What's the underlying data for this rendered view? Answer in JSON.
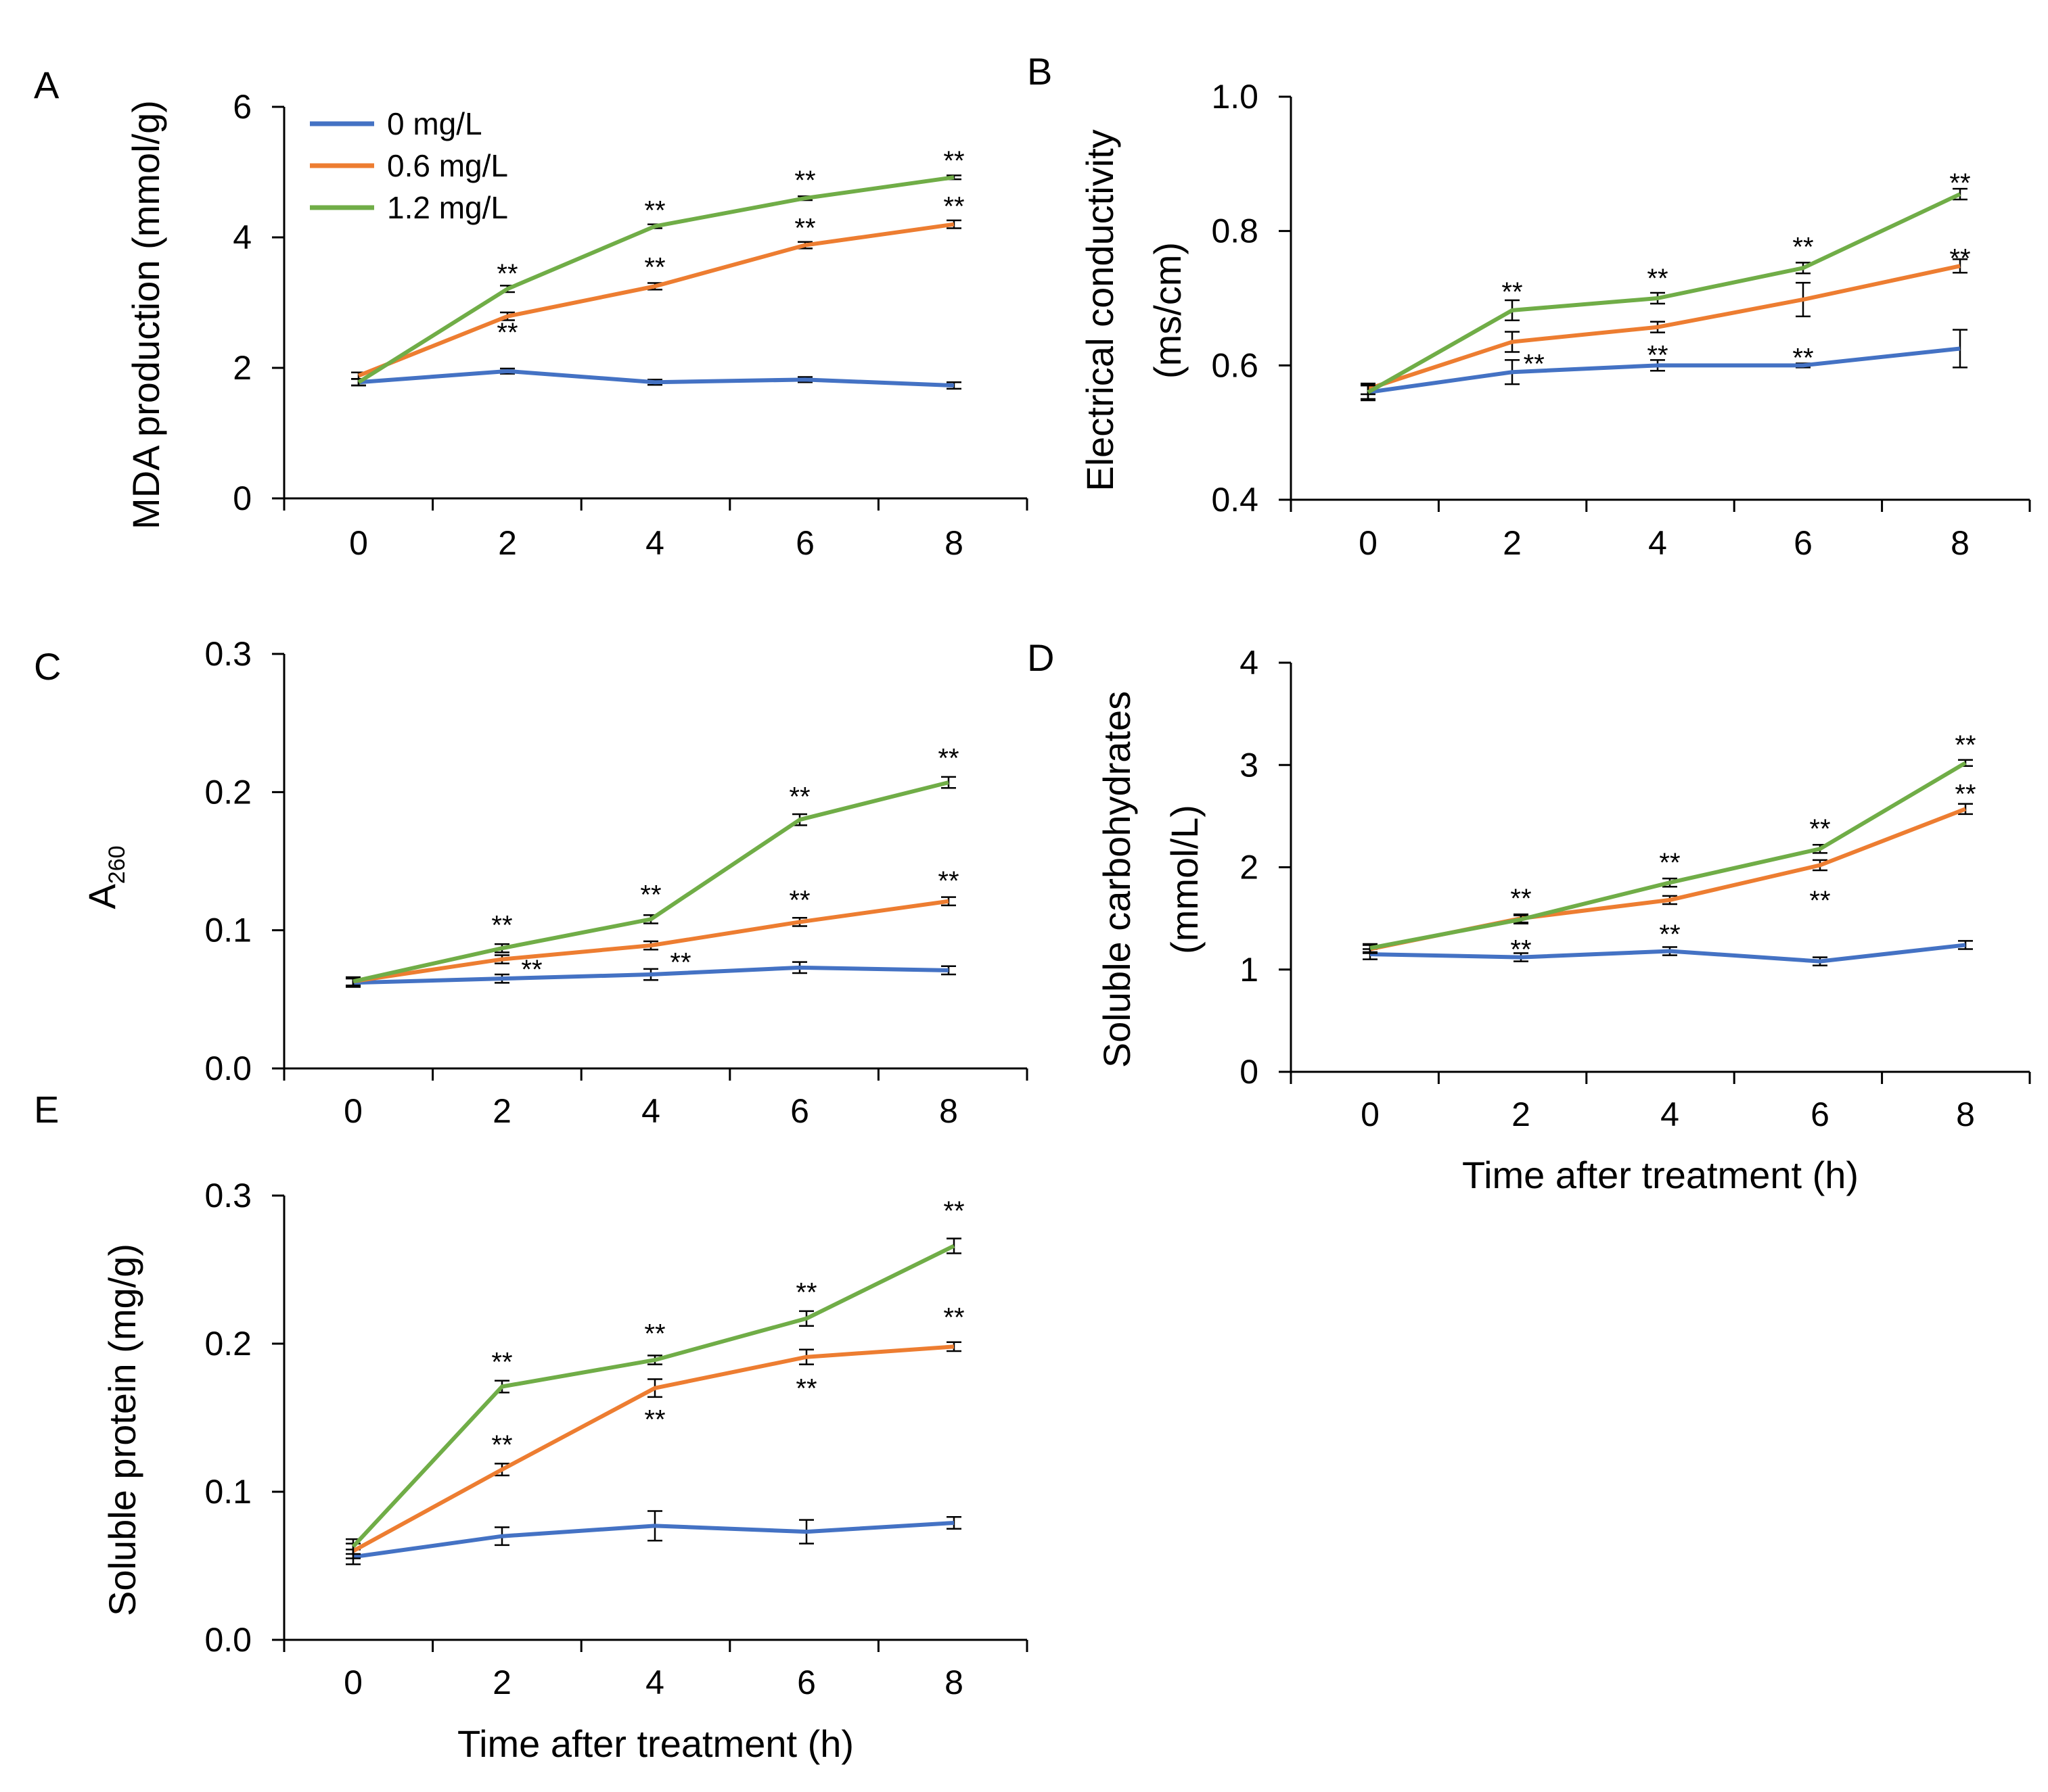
{
  "legend": [
    {
      "name": "0 mg/L",
      "color": "#4472c4"
    },
    {
      "name": "0.6 mg/L",
      "color": "#ed7d31"
    },
    {
      "name": "1.2 mg/L",
      "color": "#70ad47"
    }
  ],
  "chart_data": [
    {
      "id": "A",
      "type": "line",
      "letter": "A",
      "title": "",
      "xlabel": "",
      "ylabel": "MDA production (mmol/g)",
      "ylabel2": "",
      "x": [
        0,
        2,
        4,
        6,
        8
      ],
      "xticks": [
        "0",
        "2",
        "4",
        "6",
        "8"
      ],
      "yticks": [
        "0",
        "2",
        "4",
        "6"
      ],
      "ylim": [
        0,
        6
      ],
      "legend": "top-left",
      "series": [
        {
          "name": "0 mg/L",
          "values": [
            1.78,
            1.95,
            1.78,
            1.82,
            1.73
          ],
          "err": [
            0.05,
            0.04,
            0.04,
            0.04,
            0.05
          ]
        },
        {
          "name": "0.6 mg/L",
          "values": [
            1.88,
            2.79,
            3.25,
            3.88,
            4.2
          ],
          "err": [
            0.05,
            0.06,
            0.05,
            0.05,
            0.06
          ]
        },
        {
          "name": "1.2 mg/L",
          "values": [
            1.78,
            3.21,
            4.17,
            4.6,
            4.92
          ],
          "err": [
            0.05,
            0.05,
            0.03,
            0.03,
            0.03
          ]
        }
      ],
      "sig": [
        {
          "text": "**",
          "x": 2,
          "y": 2.55
        },
        {
          "text": "**",
          "x": 2,
          "y": 3.45
        },
        {
          "text": "**",
          "x": 4,
          "y": 3.55
        },
        {
          "text": "**",
          "x": 4,
          "y": 4.42
        },
        {
          "text": "**",
          "x": 6,
          "y": 4.15
        },
        {
          "text": "**",
          "x": 6,
          "y": 4.88
        },
        {
          "text": "**",
          "x": 8,
          "y": 4.48
        },
        {
          "text": "**",
          "x": 8,
          "y": 5.18
        }
      ]
    },
    {
      "id": "B",
      "type": "line",
      "letter": "B",
      "title": "",
      "xlabel": "",
      "ylabel": "Electrical conductivity",
      "ylabel2": "(ms/cm)",
      "x": [
        0,
        2,
        4,
        6,
        8
      ],
      "xticks": [
        "0",
        "2",
        "4",
        "6",
        "8"
      ],
      "yticks": [
        "0.4",
        "0.6",
        "0.8",
        "1.0"
      ],
      "ylim": [
        0.4,
        1.0
      ],
      "series": [
        {
          "name": "0 mg/L",
          "values": [
            0.56,
            0.59,
            0.6,
            0.6,
            0.625
          ],
          "err": [
            0.012,
            0.018,
            0.008,
            0.003,
            0.028
          ]
        },
        {
          "name": "0.6 mg/L",
          "values": [
            0.565,
            0.635,
            0.657,
            0.698,
            0.748
          ],
          "err": [
            0.008,
            0.015,
            0.008,
            0.025,
            0.01
          ]
        },
        {
          "name": "1.2 mg/L",
          "values": [
            0.56,
            0.682,
            0.7,
            0.745,
            0.855
          ],
          "err": [
            0.01,
            0.015,
            0.008,
            0.008,
            0.008
          ]
        }
      ],
      "sig": [
        {
          "text": "**",
          "x": 2,
          "y": 0.71
        },
        {
          "text": "**",
          "x": 2.3,
          "y": 0.603
        },
        {
          "text": "**",
          "x": 4,
          "y": 0.73
        },
        {
          "text": "**",
          "x": 4,
          "y": 0.616
        },
        {
          "text": "**",
          "x": 6,
          "y": 0.777
        },
        {
          "text": "**",
          "x": 6,
          "y": 0.612
        },
        {
          "text": "**",
          "x": 8,
          "y": 0.76
        },
        {
          "text": "**",
          "x": 8,
          "y": 0.872
        }
      ]
    },
    {
      "id": "C",
      "type": "line",
      "letter": "C",
      "title": "",
      "xlabel": "",
      "ylabel": "A",
      "ylabel_sub": "260",
      "ylabel2": "",
      "x": [
        0,
        2,
        4,
        6,
        8
      ],
      "xticks": [
        "0",
        "2",
        "4",
        "6",
        "8"
      ],
      "yticks": [
        "0.0",
        "0.1",
        "0.2",
        "0.3"
      ],
      "ylim": [
        0,
        0.3
      ],
      "series": [
        {
          "name": "0 mg/L",
          "values": [
            0.062,
            0.065,
            0.068,
            0.073,
            0.071
          ],
          "err": [
            0.003,
            0.003,
            0.004,
            0.004,
            0.003
          ]
        },
        {
          "name": "0.6 mg/L",
          "values": [
            0.063,
            0.079,
            0.089,
            0.106,
            0.121
          ],
          "err": [
            0.003,
            0.003,
            0.003,
            0.003,
            0.003
          ]
        },
        {
          "name": "1.2 mg/L",
          "values": [
            0.063,
            0.087,
            0.108,
            0.18,
            0.207
          ],
          "err": [
            0.003,
            0.003,
            0.003,
            0.004,
            0.004
          ]
        }
      ],
      "sig": [
        {
          "text": "**",
          "x": 2,
          "y": 0.104
        },
        {
          "text": "**",
          "x": 2.4,
          "y": 0.072
        },
        {
          "text": "**",
          "x": 4,
          "y": 0.126
        },
        {
          "text": "**",
          "x": 4.4,
          "y": 0.077
        },
        {
          "text": "**",
          "x": 6,
          "y": 0.122
        },
        {
          "text": "**",
          "x": 6,
          "y": 0.197
        },
        {
          "text": "**",
          "x": 8,
          "y": 0.136
        },
        {
          "text": "**",
          "x": 8,
          "y": 0.225
        }
      ]
    },
    {
      "id": "D",
      "type": "line",
      "letter": "D",
      "title": "",
      "xlabel": "Time after treatment (h)",
      "ylabel": "Soluble carbohydrates",
      "ylabel2": "(mmol/L)",
      "x": [
        0,
        2,
        4,
        6,
        8
      ],
      "xticks": [
        "0",
        "2",
        "4",
        "6",
        "8"
      ],
      "yticks": [
        "0",
        "1",
        "2",
        "3",
        "4"
      ],
      "ylim": [
        0,
        4
      ],
      "series": [
        {
          "name": "0 mg/L",
          "values": [
            1.15,
            1.12,
            1.18,
            1.08,
            1.24
          ],
          "err": [
            0.05,
            0.04,
            0.04,
            0.04,
            0.04
          ]
        },
        {
          "name": "0.6 mg/L",
          "values": [
            1.2,
            1.5,
            1.68,
            2.02,
            2.57
          ],
          "err": [
            0.04,
            0.04,
            0.04,
            0.05,
            0.05
          ]
        },
        {
          "name": "1.2 mg/L",
          "values": [
            1.21,
            1.49,
            1.85,
            2.18,
            3.02
          ],
          "err": [
            0.04,
            0.04,
            0.04,
            0.04,
            0.03
          ]
        }
      ],
      "sig": [
        {
          "text": "**",
          "x": 2,
          "y": 1.7
        },
        {
          "text": "**",
          "x": 2,
          "y": 1.2
        },
        {
          "text": "**",
          "x": 4,
          "y": 2.05
        },
        {
          "text": "**",
          "x": 4,
          "y": 1.35
        },
        {
          "text": "**",
          "x": 6,
          "y": 2.38
        },
        {
          "text": "**",
          "x": 6,
          "y": 1.68
        },
        {
          "text": "**",
          "x": 8,
          "y": 3.2
        },
        {
          "text": "**",
          "x": 8,
          "y": 2.72
        }
      ]
    },
    {
      "id": "E",
      "type": "line",
      "letter": "E",
      "title": "",
      "xlabel": "Time after treatment (h)",
      "ylabel": "Soluble protein (mg/g)",
      "ylabel2": "",
      "x": [
        0,
        2,
        4,
        6,
        8
      ],
      "xticks": [
        "0",
        "2",
        "4",
        "6",
        "8"
      ],
      "yticks": [
        "0.0",
        "0.1",
        "0.2",
        "0.3"
      ],
      "ylim": [
        0,
        0.3
      ],
      "series": [
        {
          "name": "0 mg/L",
          "values": [
            0.056,
            0.07,
            0.077,
            0.073,
            0.079
          ],
          "err": [
            0.005,
            0.006,
            0.01,
            0.008,
            0.004
          ]
        },
        {
          "name": "0.6 mg/L",
          "values": [
            0.06,
            0.115,
            0.17,
            0.191,
            0.198
          ],
          "err": [
            0.005,
            0.004,
            0.006,
            0.005,
            0.003
          ]
        },
        {
          "name": "1.2 mg/L",
          "values": [
            0.063,
            0.171,
            0.189,
            0.217,
            0.266
          ],
          "err": [
            0.005,
            0.004,
            0.003,
            0.005,
            0.005
          ]
        }
      ],
      "sig": [
        {
          "text": "**",
          "x": 2,
          "y": 0.188
        },
        {
          "text": "**",
          "x": 2,
          "y": 0.132
        },
        {
          "text": "**",
          "x": 4,
          "y": 0.207
        },
        {
          "text": "**",
          "x": 4,
          "y": 0.149
        },
        {
          "text": "**",
          "x": 6,
          "y": 0.235
        },
        {
          "text": "**",
          "x": 6,
          "y": 0.17
        },
        {
          "text": "**",
          "x": 8,
          "y": 0.29
        },
        {
          "text": "**",
          "x": 8,
          "y": 0.218
        }
      ]
    }
  ]
}
